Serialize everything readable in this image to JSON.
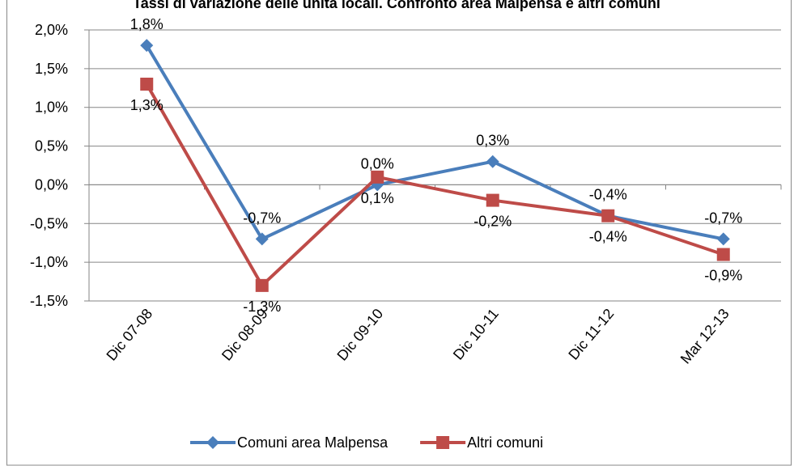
{
  "chart_data": {
    "type": "line",
    "title": "Tassi di variazione delle unità locali. Confronto area Malpensa e altri comuni",
    "categories": [
      "Dic 07-08",
      "Dic 08-09",
      "Dic 09-10",
      "Dic 10-11",
      "Dic 11-12",
      "Mar 12-13"
    ],
    "series": [
      {
        "name": "Comuni area Malpensa",
        "color": "#4a7ebb",
        "marker": "diamond",
        "values": [
          1.8,
          -0.7,
          0.0,
          0.3,
          -0.4,
          -0.7
        ],
        "value_labels": [
          "1,8%",
          "-0,7%",
          "0,0%",
          "0,3%",
          "-0,4%",
          "-0,7%"
        ]
      },
      {
        "name": "Altri comuni",
        "color": "#be4b48",
        "marker": "square",
        "values": [
          1.3,
          -1.3,
          0.1,
          -0.2,
          -0.4,
          -0.9
        ],
        "value_labels": [
          "1,3%",
          "-1,3%",
          "0,1%",
          "-0,2%",
          "-0,4%",
          "-0,9%"
        ]
      }
    ],
    "ylim": [
      -1.5,
      2.0
    ],
    "yticks": [
      {
        "value": -1.5,
        "label": "-1,5%"
      },
      {
        "value": -1.0,
        "label": "-1,0%"
      },
      {
        "value": -0.5,
        "label": "-0,5%"
      },
      {
        "value": 0.0,
        "label": "0,0%"
      },
      {
        "value": 0.5,
        "label": "0,5%"
      },
      {
        "value": 1.0,
        "label": "1,0%"
      },
      {
        "value": 1.5,
        "label": "1,5%"
      },
      {
        "value": 2.0,
        "label": "2,0%"
      }
    ],
    "grid": true,
    "legend": "bottom"
  }
}
